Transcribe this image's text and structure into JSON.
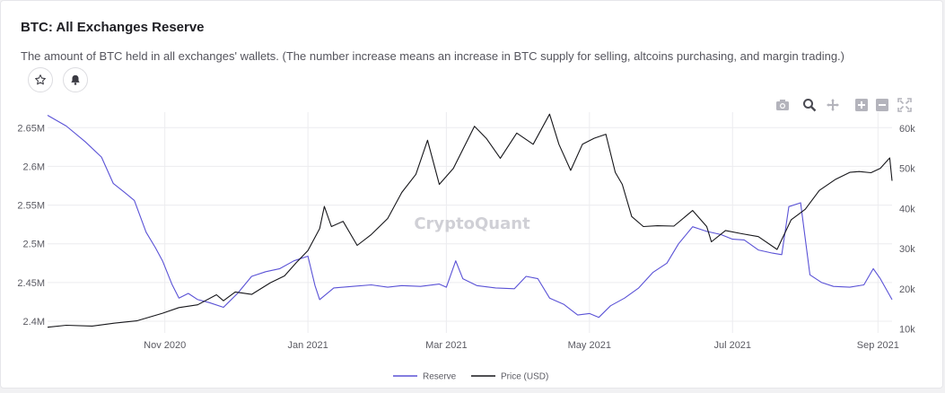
{
  "header": {
    "title": "BTC: All Exchanges Reserve",
    "subtitle": "The amount of BTC held in all exchanges' wallets. (The number increase means an increase in BTC supply for selling, altcoins purchasing, and margin trading.)"
  },
  "actions": {
    "favorite_icon": "star-icon",
    "alert_icon": "bell-icon"
  },
  "modebar": [
    "camera-icon",
    "zoom-icon",
    "pan-icon",
    "zoom-in-icon",
    "zoom-out-icon",
    "autoscale-icon"
  ],
  "watermark": "CryptoQuant",
  "colors": {
    "reserve": "#5a52d6",
    "price": "#16161a",
    "grid": "#ececef",
    "axis_text": "#5a5a62"
  },
  "chart_data": {
    "type": "line",
    "x_type": "date",
    "x_range": [
      "2020-09-12",
      "2021-09-07"
    ],
    "x_ticks": [
      {
        "date": "2020-11-01",
        "label": "Nov 2020"
      },
      {
        "date": "2021-01-01",
        "label": "Jan 2021"
      },
      {
        "date": "2021-03-01",
        "label": "Mar 2021"
      },
      {
        "date": "2021-05-01",
        "label": "May 2021"
      },
      {
        "date": "2021-07-01",
        "label": "Jul 2021"
      },
      {
        "date": "2021-09-01",
        "label": "Sep 2021"
      }
    ],
    "y_left": {
      "range": [
        2385000,
        2670000
      ],
      "ticks": [
        {
          "value": 2400000,
          "label": "2.4M"
        },
        {
          "value": 2450000,
          "label": "2.45M"
        },
        {
          "value": 2500000,
          "label": "2.5M"
        },
        {
          "value": 2550000,
          "label": "2.55M"
        },
        {
          "value": 2600000,
          "label": "2.6M"
        },
        {
          "value": 2650000,
          "label": "2.65M"
        }
      ]
    },
    "y_right": {
      "range": [
        9000,
        64000
      ],
      "ticks": [
        {
          "value": 10000,
          "label": "10k"
        },
        {
          "value": 20000,
          "label": "20k"
        },
        {
          "value": 30000,
          "label": "30k"
        },
        {
          "value": 40000,
          "label": "40k"
        },
        {
          "value": 50000,
          "label": "50k"
        },
        {
          "value": 60000,
          "label": "60k"
        }
      ]
    },
    "grid": true,
    "legend_position": "bottom-center",
    "series": [
      {
        "name": "Reserve",
        "axis": "left",
        "color": "#5a52d6",
        "points": [
          [
            "2020-09-12",
            2666000
          ],
          [
            "2020-09-20",
            2652000
          ],
          [
            "2020-09-28",
            2632000
          ],
          [
            "2020-10-05",
            2612000
          ],
          [
            "2020-10-10",
            2578000
          ],
          [
            "2020-10-15",
            2566000
          ],
          [
            "2020-10-19",
            2556000
          ],
          [
            "2020-10-24",
            2515000
          ],
          [
            "2020-10-28",
            2495000
          ],
          [
            "2020-10-31",
            2478000
          ],
          [
            "2020-11-04",
            2448000
          ],
          [
            "2020-11-07",
            2430000
          ],
          [
            "2020-11-11",
            2436000
          ],
          [
            "2020-11-15",
            2428000
          ],
          [
            "2020-11-20",
            2424000
          ],
          [
            "2020-11-26",
            2418000
          ],
          [
            "2020-12-02",
            2436000
          ],
          [
            "2020-12-08",
            2458000
          ],
          [
            "2020-12-14",
            2464000
          ],
          [
            "2020-12-20",
            2468000
          ],
          [
            "2020-12-26",
            2478000
          ],
          [
            "2021-01-01",
            2484000
          ],
          [
            "2021-01-04",
            2446000
          ],
          [
            "2021-01-06",
            2428000
          ],
          [
            "2021-01-12",
            2443000
          ],
          [
            "2021-01-20",
            2445000
          ],
          [
            "2021-01-28",
            2447000
          ],
          [
            "2021-02-04",
            2444000
          ],
          [
            "2021-02-10",
            2446000
          ],
          [
            "2021-02-18",
            2445000
          ],
          [
            "2021-02-26",
            2448000
          ],
          [
            "2021-03-01",
            2444000
          ],
          [
            "2021-03-05",
            2478000
          ],
          [
            "2021-03-08",
            2455000
          ],
          [
            "2021-03-14",
            2446000
          ],
          [
            "2021-03-22",
            2443000
          ],
          [
            "2021-03-30",
            2442000
          ],
          [
            "2021-04-04",
            2458000
          ],
          [
            "2021-04-09",
            2455000
          ],
          [
            "2021-04-14",
            2430000
          ],
          [
            "2021-04-20",
            2422000
          ],
          [
            "2021-04-26",
            2408000
          ],
          [
            "2021-05-01",
            2410000
          ],
          [
            "2021-05-05",
            2405000
          ],
          [
            "2021-05-10",
            2420000
          ],
          [
            "2021-05-16",
            2430000
          ],
          [
            "2021-05-22",
            2443000
          ],
          [
            "2021-05-28",
            2463000
          ],
          [
            "2021-06-03",
            2475000
          ],
          [
            "2021-06-08",
            2500000
          ],
          [
            "2021-06-14",
            2522000
          ],
          [
            "2021-06-20",
            2516000
          ],
          [
            "2021-06-26",
            2512000
          ],
          [
            "2021-07-01",
            2506000
          ],
          [
            "2021-07-06",
            2505000
          ],
          [
            "2021-07-12",
            2492000
          ],
          [
            "2021-07-18",
            2488000
          ],
          [
            "2021-07-22",
            2486000
          ],
          [
            "2021-07-25",
            2548000
          ],
          [
            "2021-07-30",
            2553000
          ],
          [
            "2021-08-03",
            2460000
          ],
          [
            "2021-08-08",
            2450000
          ],
          [
            "2021-08-13",
            2445000
          ],
          [
            "2021-08-20",
            2444000
          ],
          [
            "2021-08-26",
            2447000
          ],
          [
            "2021-08-30",
            2468000
          ],
          [
            "2021-09-02",
            2455000
          ],
          [
            "2021-09-07",
            2428000
          ]
        ]
      },
      {
        "name": "Price (USD)",
        "axis": "right",
        "color": "#16161a",
        "points": [
          [
            "2020-09-12",
            10400
          ],
          [
            "2020-09-20",
            10900
          ],
          [
            "2020-10-01",
            10700
          ],
          [
            "2020-10-10",
            11400
          ],
          [
            "2020-10-20",
            12000
          ],
          [
            "2020-10-31",
            13900
          ],
          [
            "2020-11-07",
            15300
          ],
          [
            "2020-11-15",
            16000
          ],
          [
            "2020-11-23",
            18500
          ],
          [
            "2020-11-26",
            17000
          ],
          [
            "2020-12-01",
            19200
          ],
          [
            "2020-12-08",
            18600
          ],
          [
            "2020-12-16",
            21500
          ],
          [
            "2020-12-22",
            23200
          ],
          [
            "2020-12-27",
            26500
          ],
          [
            "2021-01-01",
            29500
          ],
          [
            "2021-01-06",
            35000
          ],
          [
            "2021-01-08",
            40500
          ],
          [
            "2021-01-11",
            35500
          ],
          [
            "2021-01-16",
            36800
          ],
          [
            "2021-01-22",
            30800
          ],
          [
            "2021-01-28",
            33500
          ],
          [
            "2021-02-04",
            37500
          ],
          [
            "2021-02-10",
            44000
          ],
          [
            "2021-02-16",
            48500
          ],
          [
            "2021-02-21",
            57000
          ],
          [
            "2021-02-26",
            46000
          ],
          [
            "2021-03-04",
            50000
          ],
          [
            "2021-03-13",
            60500
          ],
          [
            "2021-03-18",
            57500
          ],
          [
            "2021-03-24",
            52500
          ],
          [
            "2021-03-31",
            58800
          ],
          [
            "2021-04-07",
            56000
          ],
          [
            "2021-04-14",
            63500
          ],
          [
            "2021-04-18",
            56000
          ],
          [
            "2021-04-23",
            49500
          ],
          [
            "2021-04-28",
            56000
          ],
          [
            "2021-05-03",
            57500
          ],
          [
            "2021-05-08",
            58500
          ],
          [
            "2021-05-12",
            49000
          ],
          [
            "2021-05-15",
            46000
          ],
          [
            "2021-05-19",
            38000
          ],
          [
            "2021-05-24",
            35500
          ],
          [
            "2021-05-30",
            35700
          ],
          [
            "2021-06-06",
            35600
          ],
          [
            "2021-06-14",
            39500
          ],
          [
            "2021-06-20",
            35500
          ],
          [
            "2021-06-22",
            31700
          ],
          [
            "2021-06-28",
            34500
          ],
          [
            "2021-07-05",
            33700
          ],
          [
            "2021-07-12",
            33000
          ],
          [
            "2021-07-20",
            29800
          ],
          [
            "2021-07-26",
            37200
          ],
          [
            "2021-08-01",
            39800
          ],
          [
            "2021-08-07",
            44500
          ],
          [
            "2021-08-14",
            47300
          ],
          [
            "2021-08-20",
            49000
          ],
          [
            "2021-08-24",
            49200
          ],
          [
            "2021-08-29",
            48900
          ],
          [
            "2021-09-02",
            50000
          ],
          [
            "2021-09-06",
            52600
          ],
          [
            "2021-09-07",
            46900
          ]
        ]
      }
    ]
  }
}
